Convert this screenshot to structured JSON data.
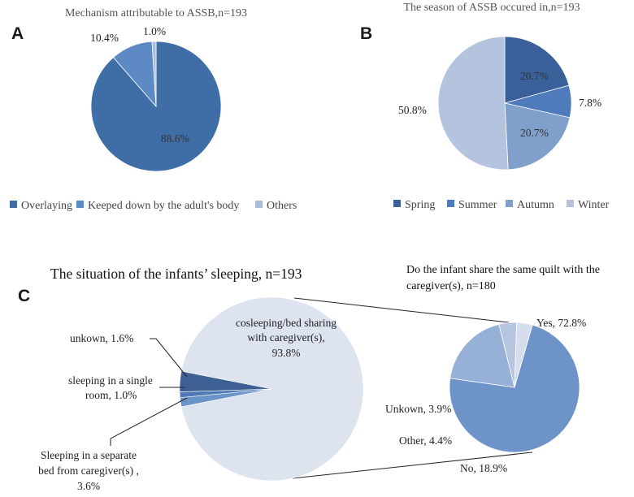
{
  "chart_data": [
    {
      "panel": "A",
      "type": "pie",
      "title": "Mechanism attributable to ASSB,n=193",
      "slices": [
        {
          "name": "Overlaying",
          "value": 88.6,
          "label": "88.6%",
          "color": "#3f6ea7"
        },
        {
          "name": "Keeped down by the adult's body",
          "value": 10.4,
          "label": "10.4%",
          "color": "#5d8ac4"
        },
        {
          "name": "Others",
          "value": 1.0,
          "label": "1.0%",
          "color": "#a9bcd9"
        }
      ],
      "legend": "bottom"
    },
    {
      "panel": "B",
      "type": "pie",
      "title": "The season of ASSB occured in,n=193",
      "slices": [
        {
          "name": "Spring",
          "value": 20.7,
          "label": "20.7%",
          "color": "#3a609a"
        },
        {
          "name": "Summer",
          "value": 7.8,
          "label": "7.8%",
          "color": "#4d7bbc"
        },
        {
          "name": "Autumn",
          "value": 20.7,
          "label": "20.7%",
          "color": "#819fcb"
        },
        {
          "name": "Winter",
          "value": 50.8,
          "label": "50.8%",
          "color": "#b4c4de"
        }
      ],
      "legend": "bottom"
    },
    {
      "panel": "C",
      "type": "pie",
      "title": "The situation of the infants’ sleeping, n=193",
      "slices": [
        {
          "name": "cosleeping/bed sharing with caregiver(s)",
          "value": 93.8,
          "label_lines": [
            "cosleeping/bed sharing",
            "with caregiver(s),",
            "93.8%"
          ],
          "color": "#dde3ef"
        },
        {
          "name": "unkown",
          "value": 1.6,
          "label_lines": [
            "unkown, 1.6%"
          ],
          "color": "#6a93c9"
        },
        {
          "name": "sleeping in a single room",
          "value": 1.0,
          "label_lines": [
            "sleeping in a single",
            "room, 1.0%"
          ],
          "color": "#4f79b4"
        },
        {
          "name": "Sleeping in a separate bed from caregiver(s)",
          "value": 3.6,
          "label_lines": [
            "Sleeping in a separate",
            "bed from caregiver(s) ,",
            "3.6%"
          ],
          "color": "#3d5f93"
        }
      ]
    },
    {
      "panel": "C-detail",
      "type": "pie",
      "title_lines": [
        "Do the infant share the same quilt with the",
        "caregiver(s), n=180"
      ],
      "slices": [
        {
          "name": "Yes",
          "value": 72.8,
          "label": "Yes, 72.8%",
          "color": "#6d93c9"
        },
        {
          "name": "No",
          "value": 18.9,
          "label": "No, 18.9%",
          "color": "#97b0d7"
        },
        {
          "name": "Other",
          "value": 4.4,
          "label": "Other, 4.4%",
          "color": "#b6c6e1"
        },
        {
          "name": "Unkown",
          "value": 3.9,
          "label": "Unkown, 3.9%",
          "color": "#d6deed"
        }
      ]
    }
  ]
}
